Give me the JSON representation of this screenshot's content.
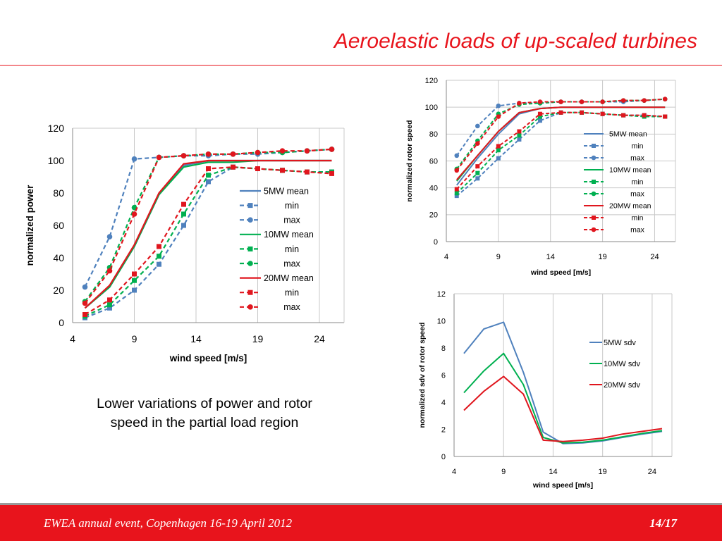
{
  "slide": {
    "title": "Aeroelastic loads of up-scaled turbines",
    "caption": "Lower variations of power and rotor speed in the partial load region",
    "footer_left": "EWEA annual event, Copenhagen 16-19 April 2012",
    "footer_right": "14/17"
  },
  "colors": {
    "accent": "#e8141c",
    "blue": "#4f81bd",
    "green": "#00b050",
    "red": "#e0161e"
  },
  "chart_data": [
    {
      "id": "power",
      "type": "line",
      "xlabel": "wind speed [m/s]",
      "ylabel": "normalized power",
      "xlim": [
        4,
        26
      ],
      "ylim": [
        0,
        120
      ],
      "xticks": [
        4,
        9,
        14,
        19,
        24
      ],
      "yticks": [
        0,
        20,
        40,
        60,
        80,
        100,
        120
      ],
      "grid": "vertical",
      "legend_position": "right",
      "x": [
        5,
        7,
        9,
        11,
        13,
        15,
        17,
        19,
        21,
        23,
        25
      ],
      "series": [
        {
          "name": "5MW mean",
          "color": "#4f81bd",
          "style": "solid",
          "marker": "none",
          "values": [
            9,
            22,
            47,
            79,
            97,
            100,
            100,
            100,
            100,
            100,
            100
          ]
        },
        {
          "name": "min",
          "color": "#4f81bd",
          "style": "dashed",
          "marker": "square",
          "values": [
            3,
            9,
            20,
            36,
            60,
            87,
            96,
            95,
            94,
            93,
            93
          ]
        },
        {
          "name": "max",
          "color": "#4f81bd",
          "style": "dashed",
          "marker": "circle",
          "values": [
            22,
            53,
            101,
            102,
            103,
            103,
            104,
            104,
            105,
            106,
            107
          ]
        },
        {
          "name": "10MW mean",
          "color": "#00b050",
          "style": "solid",
          "marker": "none",
          "values": [
            9,
            22,
            47,
            79,
            96,
            99,
            99,
            100,
            100,
            100,
            100
          ]
        },
        {
          "name": "min",
          "color": "#00b050",
          "style": "dashed",
          "marker": "square",
          "values": [
            4,
            11,
            26,
            41,
            67,
            91,
            96,
            95,
            94,
            93,
            93
          ]
        },
        {
          "name": "max",
          "color": "#00b050",
          "style": "dashed",
          "marker": "circle",
          "values": [
            13,
            34,
            71,
            102,
            103,
            104,
            104,
            105,
            105,
            106,
            107
          ]
        },
        {
          "name": "20MW mean",
          "color": "#e0161e",
          "style": "solid",
          "marker": "none",
          "values": [
            9,
            23,
            48,
            80,
            98,
            100,
            100,
            100,
            100,
            100,
            100
          ]
        },
        {
          "name": "min",
          "color": "#e0161e",
          "style": "dashed",
          "marker": "square",
          "values": [
            5,
            14,
            30,
            47,
            73,
            95,
            96,
            95,
            94,
            93,
            92
          ]
        },
        {
          "name": "max",
          "color": "#e0161e",
          "style": "dashed",
          "marker": "circle",
          "values": [
            12,
            32,
            67,
            102,
            103,
            104,
            104,
            105,
            106,
            106,
            107
          ]
        }
      ]
    },
    {
      "id": "rotor_speed",
      "type": "line",
      "xlabel": "wind speed [m/s]",
      "ylabel": "normalized rotor speed",
      "xlim": [
        4,
        26
      ],
      "ylim": [
        0,
        120
      ],
      "xticks": [
        4,
        9,
        14,
        19,
        24
      ],
      "yticks": [
        0,
        20,
        40,
        60,
        80,
        100,
        120
      ],
      "grid": "both",
      "legend_position": "right",
      "x": [
        5,
        7,
        9,
        11,
        13,
        15,
        17,
        19,
        21,
        23,
        25
      ],
      "series": [
        {
          "name": "5MW mean",
          "color": "#4f81bd",
          "style": "solid",
          "marker": "none",
          "values": [
            42,
            62,
            80,
            95,
            99,
            100,
            100,
            100,
            100,
            100,
            100
          ]
        },
        {
          "name": "min",
          "color": "#4f81bd",
          "style": "dashed",
          "marker": "square",
          "values": [
            34,
            47,
            62,
            76,
            90,
            96,
            96,
            95,
            94,
            94,
            93
          ]
        },
        {
          "name": "max",
          "color": "#4f81bd",
          "style": "dashed",
          "marker": "circle",
          "values": [
            64,
            86,
            101,
            103,
            103,
            104,
            104,
            104,
            104,
            105,
            106
          ]
        },
        {
          "name": "10MW mean",
          "color": "#00b050",
          "style": "solid",
          "marker": "none",
          "values": [
            45,
            64,
            82,
            96,
            99,
            100,
            100,
            100,
            100,
            100,
            100
          ]
        },
        {
          "name": "min",
          "color": "#00b050",
          "style": "dashed",
          "marker": "square",
          "values": [
            36,
            51,
            68,
            79,
            93,
            96,
            96,
            95,
            94,
            93,
            93
          ]
        },
        {
          "name": "max",
          "color": "#00b050",
          "style": "dashed",
          "marker": "circle",
          "values": [
            54,
            75,
            95,
            102,
            103,
            104,
            104,
            104,
            105,
            105,
            106
          ]
        },
        {
          "name": "20MW mean",
          "color": "#e0161e",
          "style": "solid",
          "marker": "none",
          "values": [
            46,
            64,
            82,
            96,
            99,
            100,
            100,
            100,
            100,
            100,
            100
          ]
        },
        {
          "name": "min",
          "color": "#e0161e",
          "style": "dashed",
          "marker": "square",
          "values": [
            39,
            56,
            71,
            82,
            95,
            96,
            96,
            95,
            94,
            94,
            93
          ]
        },
        {
          "name": "max",
          "color": "#e0161e",
          "style": "dashed",
          "marker": "circle",
          "values": [
            53,
            73,
            93,
            103,
            104,
            104,
            104,
            104,
            105,
            105,
            106
          ]
        }
      ]
    },
    {
      "id": "rotor_speed_sdv",
      "type": "line",
      "xlabel": "wind speed [m/s]",
      "ylabel": "normalized sdv of rotor speed",
      "xlim": [
        4,
        26
      ],
      "ylim": [
        0,
        12
      ],
      "xticks": [
        4,
        9,
        14,
        19,
        24
      ],
      "yticks": [
        0,
        2,
        4,
        6,
        8,
        10,
        12
      ],
      "grid": "vertical",
      "legend_position": "right",
      "x": [
        5,
        7,
        9,
        11,
        13,
        15,
        17,
        19,
        21,
        23,
        25
      ],
      "series": [
        {
          "name": "5MW sdv",
          "color": "#4f81bd",
          "style": "solid",
          "marker": "none",
          "values": [
            7.6,
            9.4,
            9.9,
            6.2,
            1.8,
            0.95,
            1.0,
            1.15,
            1.4,
            1.65,
            1.85
          ]
        },
        {
          "name": "10MW sdv",
          "color": "#00b050",
          "style": "solid",
          "marker": "none",
          "values": [
            4.7,
            6.3,
            7.6,
            5.3,
            1.4,
            1.0,
            1.05,
            1.2,
            1.45,
            1.7,
            1.9
          ]
        },
        {
          "name": "20MW sdv",
          "color": "#e0161e",
          "style": "solid",
          "marker": "none",
          "values": [
            3.4,
            4.8,
            5.9,
            4.6,
            1.2,
            1.1,
            1.2,
            1.35,
            1.65,
            1.85,
            2.05
          ]
        }
      ]
    }
  ]
}
